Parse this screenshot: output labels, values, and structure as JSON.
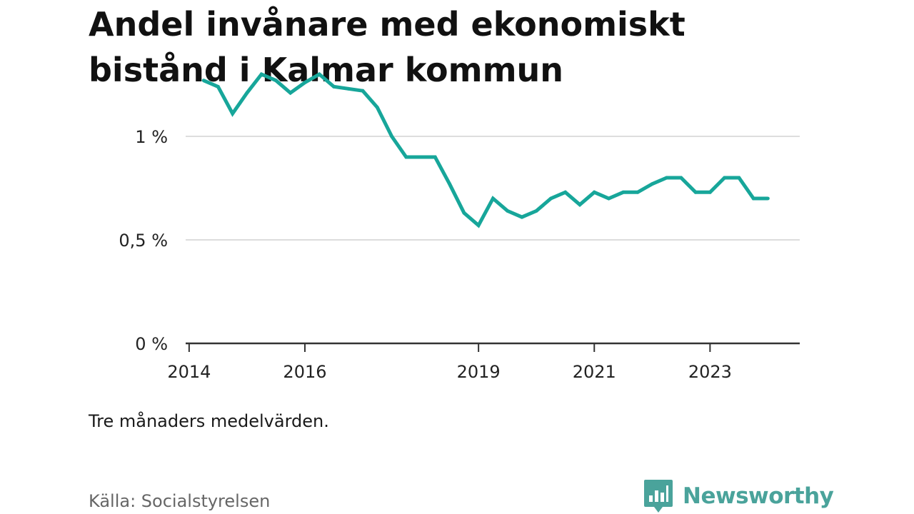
{
  "title": "Andel invånare med ekonomiskt bistånd i Kalmar kommun",
  "note": "Tre månaders medelvärden.",
  "source": "Källa: Socialstyrelsen",
  "brand": "Newsworthy",
  "colors": {
    "line": "#17a69a",
    "grid": "#dddddd",
    "axis": "#333333",
    "brand": "#4aa39b"
  },
  "chart_data": {
    "type": "line",
    "title": "Andel invånare med ekonomiskt bistånd i Kalmar kommun",
    "xlabel": "",
    "ylabel": "",
    "ylim": [
      0,
      1.1
    ],
    "xlim": [
      2013.94,
      2024.55
    ],
    "grid": true,
    "yticks": [
      0,
      0.5,
      1
    ],
    "ytick_labels": [
      "0 %",
      "0,5 %",
      "1 %"
    ],
    "xticks": [
      2014,
      2016,
      2019,
      2021,
      2023
    ],
    "xtick_labels": [
      "2014",
      "2016",
      "2019",
      "2021",
      "2023"
    ],
    "series": [
      {
        "name": "",
        "x": [
          2014.25,
          2014.5,
          2014.75,
          2015.0,
          2015.25,
          2015.5,
          2015.75,
          2016.0,
          2016.25,
          2016.5,
          2016.75,
          2017.0,
          2017.25,
          2017.5,
          2017.75,
          2018.0,
          2018.25,
          2018.5,
          2018.75,
          2019.0,
          2019.25,
          2019.5,
          2019.75,
          2020.0,
          2020.25,
          2020.5,
          2020.75,
          2021.0,
          2021.25,
          2021.5,
          2021.75,
          2022.0,
          2022.25,
          2022.5,
          2022.75,
          2023.0,
          2023.25,
          2023.5,
          2023.75,
          2024.0
        ],
        "values": [
          1.27,
          1.24,
          1.11,
          1.21,
          1.3,
          1.27,
          1.21,
          1.26,
          1.3,
          1.24,
          1.23,
          1.22,
          1.14,
          1.0,
          0.9,
          0.9,
          0.9,
          0.77,
          0.63,
          0.57,
          0.7,
          0.64,
          0.61,
          0.64,
          0.7,
          0.73,
          0.67,
          0.73,
          0.7,
          0.73,
          0.73,
          0.77,
          0.8,
          0.8,
          0.73,
          0.73,
          0.8,
          0.8,
          0.7,
          0.7
        ]
      }
    ]
  }
}
